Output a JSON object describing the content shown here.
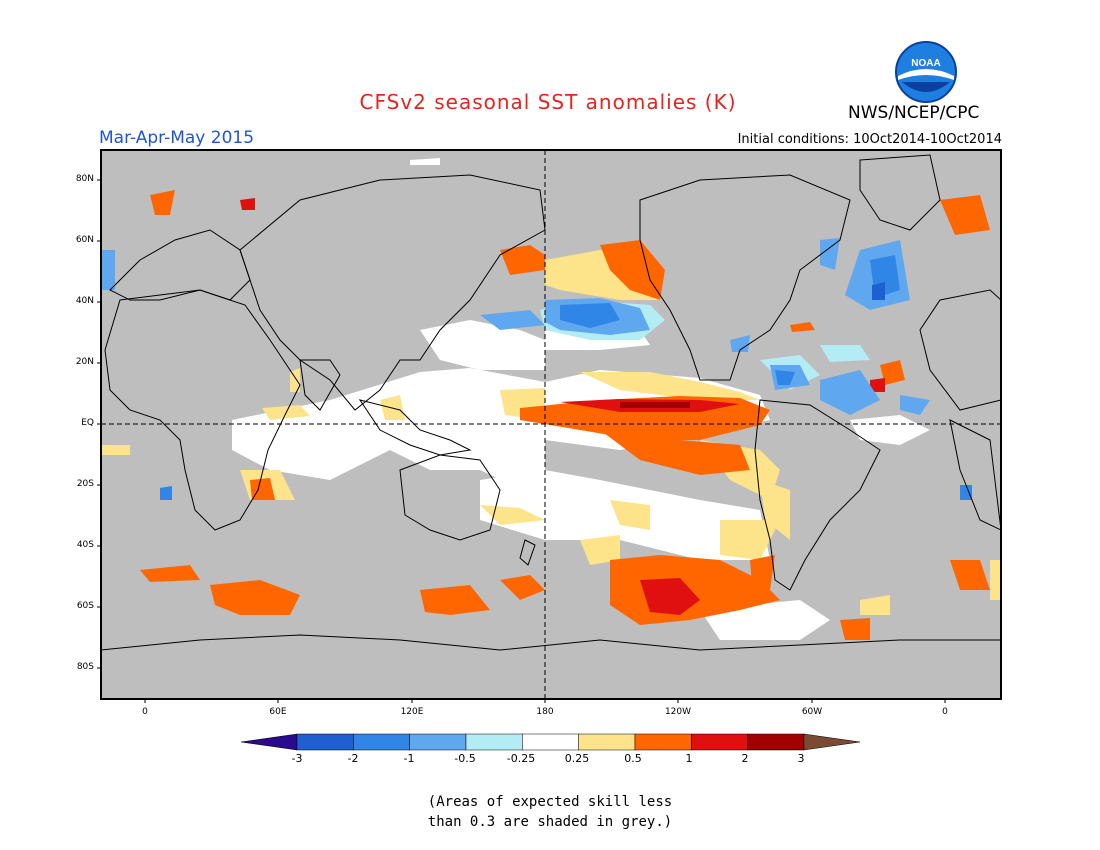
{
  "header": {
    "title": "CFSv2 seasonal SST anomalies (K)",
    "period": "Mar-Apr-May 2015",
    "initial_conditions": "Initial conditions: 10Oct2014-10Oct2014",
    "organization": "NWS/NCEP/CPC",
    "logo_text": "NOAA"
  },
  "map": {
    "lat_ticks": [
      "80N",
      "60N",
      "40N",
      "20N",
      "EQ",
      "20S",
      "40S",
      "60S",
      "80S"
    ],
    "lon_ticks": [
      "0",
      "60E",
      "120E",
      "180",
      "120W",
      "60W",
      "0"
    ],
    "projection": "cylindrical equidistant",
    "background_grey": "#bebebe",
    "reference_lines": [
      "Equator",
      "180"
    ]
  },
  "colorbar": {
    "labels": [
      "-3",
      "-2",
      "-1",
      "-0.5",
      "-0.25",
      "0.25",
      "0.5",
      "1",
      "2",
      "3"
    ],
    "colors": [
      "#2a0a8a",
      "#1f5fd0",
      "#2f86e6",
      "#5fa8f0",
      "#b4ecf5",
      "#ffffff",
      "#fde38a",
      "#ff6600",
      "#e01010",
      "#a00000",
      "#7a4a35"
    ]
  },
  "note": {
    "line1": "(Areas of expected skill less",
    "line2": "than 0.3 are shaded in grey.)"
  }
}
